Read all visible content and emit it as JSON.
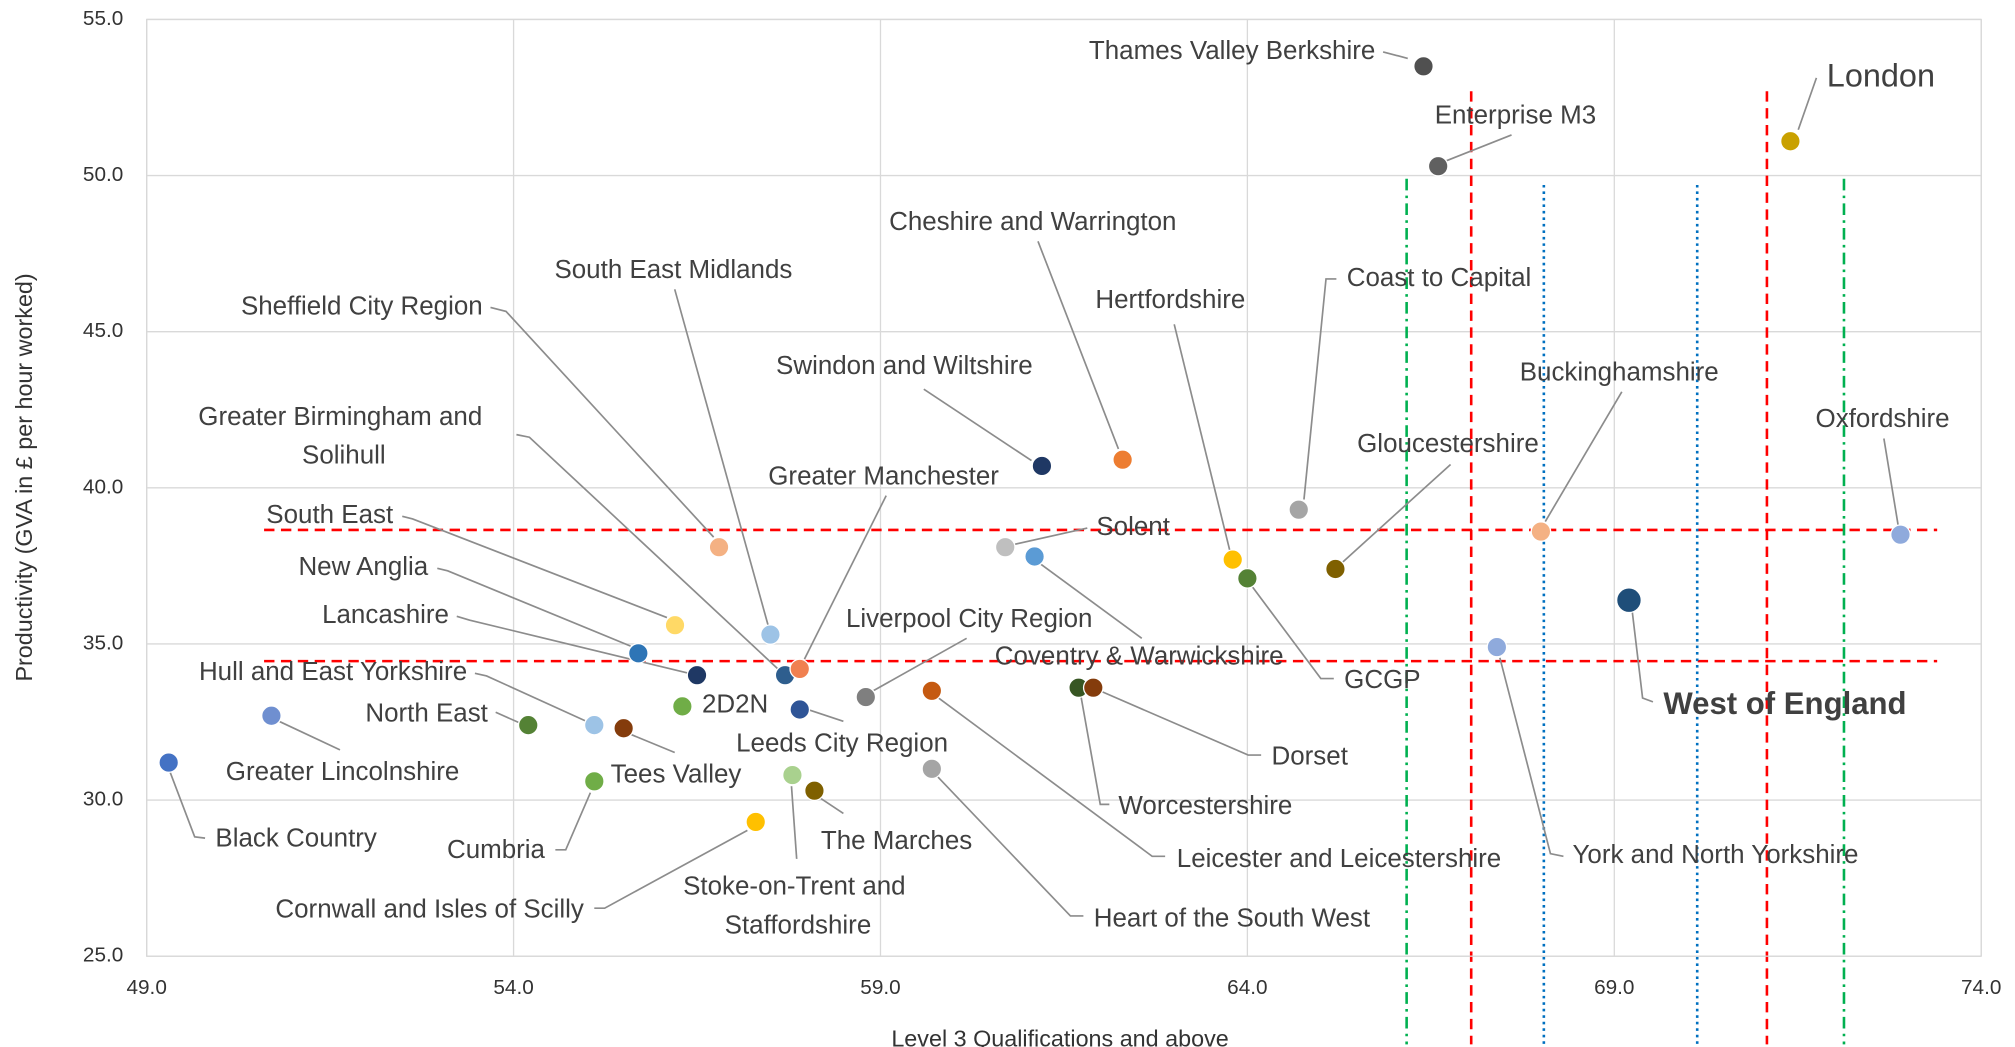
{
  "chart_data": {
    "type": "scatter",
    "x_label": "Level 3 Qualifications and above",
    "y_label": "Productivity (GVA in £ per hour worked)",
    "xlim": [
      49,
      74
    ],
    "ylim": [
      25,
      55
    ],
    "xticks": [
      {
        "value": 49,
        "label": "49.0"
      },
      {
        "value": 54,
        "label": "54.0"
      },
      {
        "value": 59,
        "label": "59.0"
      },
      {
        "value": 64,
        "label": "64.0"
      },
      {
        "value": 69,
        "label": "69.0"
      },
      {
        "value": 74,
        "label": "74.0"
      }
    ],
    "yticks": [
      {
        "value": 25,
        "label": "25.0"
      },
      {
        "value": 30,
        "label": "30.0"
      },
      {
        "value": 35,
        "label": "35.0"
      },
      {
        "value": 40,
        "label": "40.0"
      },
      {
        "value": 45,
        "label": "45.0"
      },
      {
        "value": 50,
        "label": "50.0"
      },
      {
        "value": 55,
        "label": "55.0"
      }
    ],
    "grid": true,
    "points": [
      {
        "name": "Thames Valley Berkshire",
        "x": 66.4,
        "y": 53.5,
        "color": "#505050"
      },
      {
        "name": "Enterprise M3",
        "x": 66.6,
        "y": 50.3,
        "color": "#606060"
      },
      {
        "name": "London",
        "x": 71.4,
        "y": 51.1,
        "color": "#C9A100"
      },
      {
        "name": "Cheshire and Warrington",
        "x": 62.3,
        "y": 40.9,
        "color": "#ED7D31"
      },
      {
        "name": "Swindon and Wiltshire",
        "x": 61.2,
        "y": 40.7,
        "color": "#1F3864"
      },
      {
        "name": "Coast to Capital",
        "x": 64.7,
        "y": 39.3,
        "color": "#A5A5A5"
      },
      {
        "name": "Buckinghamshire",
        "x": 68.0,
        "y": 38.6,
        "color": "#F4B183"
      },
      {
        "name": "Oxfordshire",
        "x": 72.9,
        "y": 38.5,
        "color": "#8FAADC"
      },
      {
        "name": "Sheffield City Region",
        "x": 56.8,
        "y": 38.1,
        "color": "#F4B183"
      },
      {
        "name": "Solent",
        "x": 60.7,
        "y": 38.1,
        "color": "#BFBFBF"
      },
      {
        "name": "Greater Birmingham and Solihull",
        "x": 57.7,
        "y": 34.0,
        "color": "#2E5E8E"
      },
      {
        "name": "South East",
        "x": 56.2,
        "y": 35.6,
        "color": "#FFD966"
      },
      {
        "name": "South East Midlands",
        "x": 57.5,
        "y": 35.3,
        "color": "#9DC3E6"
      },
      {
        "name": "Greater Manchester",
        "x": 57.9,
        "y": 34.2,
        "color": "#F08050"
      },
      {
        "name": "Hertfordshire",
        "x": 63.8,
        "y": 37.7,
        "color": "#FFC000"
      },
      {
        "name": "GCGP",
        "x": 64.0,
        "y": 37.1,
        "color": "#548235"
      },
      {
        "name": "Gloucestershire",
        "x": 65.2,
        "y": 37.4,
        "color": "#7F6000"
      },
      {
        "name": "Coventry & Warwickshire",
        "x": 61.1,
        "y": 37.8,
        "color": "#5B9BD5"
      },
      {
        "name": "West of England",
        "x": 69.2,
        "y": 36.4,
        "color": "#1F4E79"
      },
      {
        "name": "York and North Yorkshire",
        "x": 67.4,
        "y": 34.9,
        "color": "#8FAADC"
      },
      {
        "name": "New Anglia",
        "x": 55.7,
        "y": 34.7,
        "color": "#2E75B6"
      },
      {
        "name": "Lancashire",
        "x": 56.5,
        "y": 34.0,
        "color": "#1F3864"
      },
      {
        "name": "2D2N",
        "x": 56.3,
        "y": 33.0,
        "color": "#70AD47"
      },
      {
        "name": "Leeds City Region",
        "x": 57.9,
        "y": 32.9,
        "color": "#2F5597"
      },
      {
        "name": "Liverpool City Region",
        "x": 58.8,
        "y": 33.3,
        "color": "#7F7F7F"
      },
      {
        "name": "Leicester and Leicestershire",
        "x": 59.7,
        "y": 33.5,
        "color": "#C55A11"
      },
      {
        "name": "Heart of the South West",
        "x": 59.7,
        "y": 31.0,
        "color": "#A5A5A5"
      },
      {
        "name": "Worcestershire",
        "x": 61.7,
        "y": 33.6,
        "color": "#375623"
      },
      {
        "name": "Dorset",
        "x": 61.9,
        "y": 33.6,
        "color": "#843C0C"
      },
      {
        "name": "Hull and East Yorkshire",
        "x": 55.1,
        "y": 32.4,
        "color": "#9DC3E6"
      },
      {
        "name": "Tees Valley",
        "x": 55.5,
        "y": 32.3,
        "color": "#843C0C"
      },
      {
        "name": "North East",
        "x": 54.2,
        "y": 32.4,
        "color": "#548235"
      },
      {
        "name": "Greater Lincolnshire",
        "x": 50.7,
        "y": 32.7,
        "color": "#6F8FD0"
      },
      {
        "name": "Black Country",
        "x": 49.3,
        "y": 31.2,
        "color": "#4472C4"
      },
      {
        "name": "Cumbria",
        "x": 55.1,
        "y": 30.6,
        "color": "#70AD47"
      },
      {
        "name": "Stoke-on-Trent and Staffordshire",
        "x": 57.8,
        "y": 30.8,
        "color": "#A9D18E"
      },
      {
        "name": "The Marches",
        "x": 58.1,
        "y": 30.3,
        "color": "#7F6000"
      },
      {
        "name": "Cornwall and Isles of Scilly",
        "x": 57.3,
        "y": 29.3,
        "color": "#FFC000"
      }
    ],
    "hlines": [
      {
        "y": 38.65,
        "x_start": 50.6,
        "x_end": 73.4,
        "color": "#FF0000",
        "style": "dashed"
      },
      {
        "y": 34.45,
        "x_start": 50.6,
        "x_end": 73.4,
        "color": "#FF0000",
        "style": "dashed"
      }
    ],
    "vlines": [
      {
        "x": 67.05,
        "y_top": 52.7,
        "color": "#FF0000",
        "style": "dashed"
      },
      {
        "x": 71.08,
        "y_top": 52.7,
        "color": "#FF0000",
        "style": "dashed"
      },
      {
        "x": 68.04,
        "y_top": 49.7,
        "color": "#0070C0",
        "style": "dotted"
      },
      {
        "x": 70.13,
        "y_top": 49.7,
        "color": "#0070C0",
        "style": "dotted"
      },
      {
        "x": 66.17,
        "y_top": 49.9,
        "color": "#00B050",
        "style": "dashdot"
      },
      {
        "x": 72.13,
        "y_top": 49.9,
        "color": "#00B050",
        "style": "dashdot"
      }
    ]
  }
}
